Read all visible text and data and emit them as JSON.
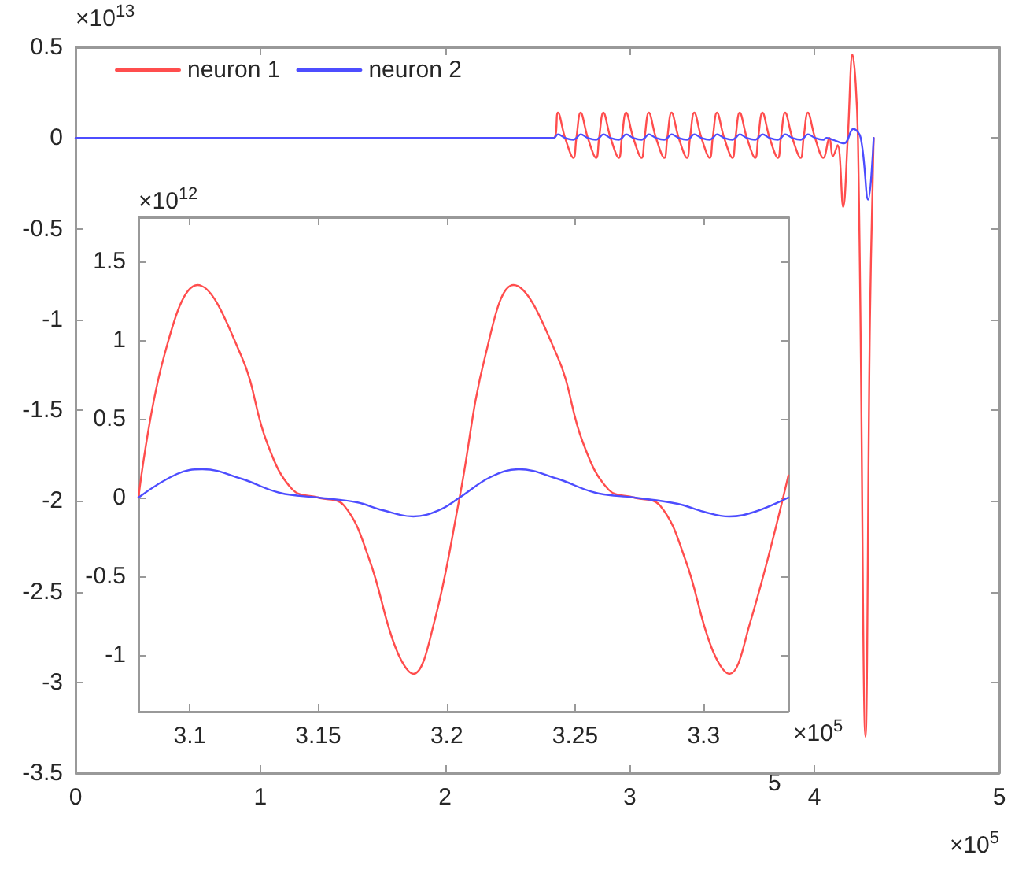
{
  "chart_data": [
    {
      "type": "line",
      "xlim": [
        0,
        5
      ],
      "xticks": [
        0,
        1,
        2,
        3,
        4,
        5
      ],
      "ylim": [
        -3.5,
        0.5
      ],
      "yticks": [
        -3.5,
        -3,
        -2.5,
        -2,
        -1.5,
        -1,
        -0.5,
        0,
        0.5
      ],
      "legend": "top left",
      "marker": "none",
      "annotations": [
        "×10$^{13}$",
        "×10$^{5}$",
        "5"
      ],
      "series": [
        {
          "name": "neuron 1",
          "color": "#ff4d4d",
          "x": [
            0,
            2.588,
            2.611,
            2.65,
            2.695,
            2.711,
            2.734,
            2.773,
            2.818,
            2.834,
            2.857,
            2.896,
            2.941,
            2.957,
            2.98,
            3.019,
            3.064,
            3.08,
            3.103,
            3.142,
            3.187,
            3.203,
            3.226,
            3.265,
            3.31,
            3.326,
            3.349,
            3.388,
            3.433,
            3.449,
            3.472,
            3.511,
            3.556,
            3.572,
            3.595,
            3.634,
            3.679,
            3.695,
            3.718,
            3.757,
            3.802,
            3.818,
            3.841,
            3.88,
            3.925,
            3.941,
            3.964,
            4.003,
            4.048,
            4.08,
            4.1,
            4.125,
            4.155,
            4.18,
            4.205,
            4.235,
            4.276,
            4.3,
            4.32
          ],
          "values": [
            0,
            0,
            0.14,
            0,
            -0.11,
            0,
            0.14,
            0,
            -0.11,
            0,
            0.14,
            0,
            -0.11,
            0,
            0.14,
            0,
            -0.11,
            0,
            0.14,
            0,
            -0.11,
            0,
            0.14,
            0,
            -0.11,
            0,
            0.14,
            0,
            -0.11,
            0,
            0.14,
            0,
            -0.11,
            0,
            0.14,
            0,
            -0.11,
            0,
            0.14,
            0,
            -0.11,
            0,
            0.14,
            0,
            -0.11,
            0,
            0.14,
            0,
            -0.11,
            0,
            -0.1,
            -0.04,
            -0.38,
            0,
            0.46,
            0,
            -3.3,
            -1.0,
            0
          ]
        },
        {
          "name": "neuron 2",
          "color": "#4d4dff",
          "x": [
            0,
            2.588,
            2.611,
            2.65,
            2.695,
            2.711,
            2.734,
            2.773,
            2.818,
            2.834,
            2.857,
            2.896,
            2.941,
            2.957,
            2.98,
            3.019,
            3.064,
            3.08,
            3.103,
            3.142,
            3.187,
            3.203,
            3.226,
            3.265,
            3.31,
            3.326,
            3.349,
            3.388,
            3.433,
            3.449,
            3.472,
            3.511,
            3.556,
            3.572,
            3.595,
            3.634,
            3.679,
            3.695,
            3.718,
            3.757,
            3.802,
            3.818,
            3.841,
            3.88,
            3.925,
            3.941,
            3.964,
            4.003,
            4.048,
            4.064,
            4.1,
            4.16,
            4.21,
            4.25,
            4.29,
            4.32
          ],
          "values": [
            0,
            0,
            0.02,
            0,
            -0.01,
            0,
            0.02,
            0,
            -0.01,
            0,
            0.02,
            0,
            -0.01,
            0,
            0.02,
            0,
            -0.01,
            0,
            0.02,
            0,
            -0.01,
            0,
            0.02,
            0,
            -0.01,
            0,
            0.02,
            0,
            -0.01,
            0,
            0.02,
            0,
            -0.01,
            0,
            0.02,
            0,
            -0.01,
            0,
            0.02,
            0,
            -0.01,
            0,
            0.02,
            0,
            -0.01,
            0,
            0.02,
            0,
            -0.01,
            0,
            -0.01,
            -0.03,
            0.05,
            0,
            -0.34,
            0
          ]
        }
      ]
    },
    {
      "type": "line",
      "xlim": [
        3.08,
        3.333
      ],
      "xticks": [
        3.1,
        3.15,
        3.2,
        3.25,
        3.3
      ],
      "ylim": [
        -1.36,
        1.78
      ],
      "yticks": [
        -1,
        -0.5,
        0,
        0.5,
        1,
        1.5
      ],
      "marker": "none",
      "annotations": [
        "×10$^{12}$",
        "×10$^{5}$"
      ],
      "series": [
        {
          "color": "#ff4d4d",
          "x": [
            3.08,
            3.09,
            3.103,
            3.12,
            3.13,
            3.14,
            3.15,
            3.16,
            3.17,
            3.18,
            3.187,
            3.195,
            3.205,
            3.215,
            3.226,
            3.243,
            3.253,
            3.263,
            3.273,
            3.283,
            3.293,
            3.303,
            3.31,
            3.318,
            3.333
          ],
          "values": [
            0,
            0.9,
            1.35,
            0.9,
            0.35,
            0.05,
            0,
            -0.05,
            -0.4,
            -0.95,
            -1.12,
            -0.8,
            0,
            0.9,
            1.35,
            0.9,
            0.35,
            0.05,
            0,
            -0.05,
            -0.4,
            -0.95,
            -1.12,
            -0.8,
            0.14
          ]
        },
        {
          "color": "#4d4dff",
          "x": [
            3.08,
            3.095,
            3.105,
            3.12,
            3.135,
            3.15,
            3.165,
            3.175,
            3.187,
            3.197,
            3.205,
            3.217,
            3.228,
            3.243,
            3.258,
            3.273,
            3.29,
            3.3,
            3.31,
            3.32,
            3.333
          ],
          "values": [
            0,
            0.15,
            0.18,
            0.12,
            0.03,
            0,
            -0.03,
            -0.08,
            -0.12,
            -0.08,
            0,
            0.13,
            0.18,
            0.12,
            0.03,
            0,
            -0.04,
            -0.09,
            -0.12,
            -0.09,
            0
          ]
        }
      ]
    }
  ]
}
